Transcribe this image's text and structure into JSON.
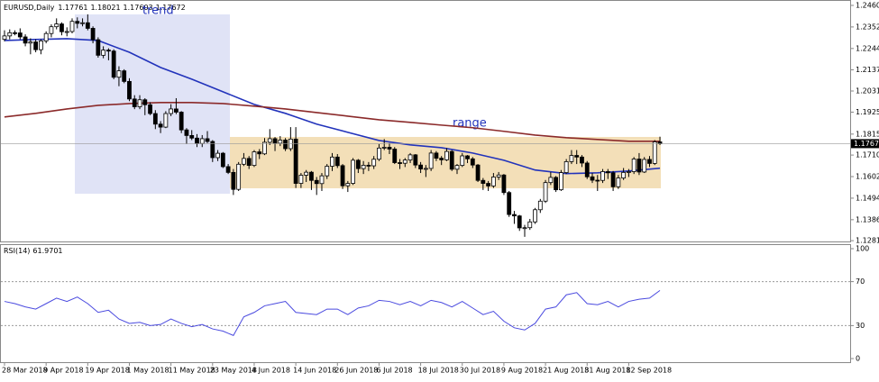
{
  "chart_data": [
    {
      "type": "candlestick",
      "title": "EURUSD,Daily",
      "annotations": [
        "trend",
        "range"
      ],
      "ylim": [
        1.1268,
        1.2487
      ],
      "yticks": [
        {
          "value": 1.246,
          "label": "1.24600"
        },
        {
          "value": 1.2352,
          "label": "1.23520"
        },
        {
          "value": 1.2244,
          "label": "1.22440"
        },
        {
          "value": 1.2137,
          "label": "1.21370"
        },
        {
          "value": 1.2031,
          "label": "1.20310"
        },
        {
          "value": 1.1925,
          "label": "1.19250"
        },
        {
          "value": 1.1815,
          "label": "1.18150"
        },
        {
          "value": 1.171,
          "label": "1.17100"
        },
        {
          "value": 1.1602,
          "label": "1.16020"
        },
        {
          "value": 1.1494,
          "label": "1.14940"
        },
        {
          "value": 1.1386,
          "label": "1.13860"
        },
        {
          "value": 1.1281,
          "label": "1.12810"
        }
      ],
      "bull_color": "#ffffff",
      "bear_color": "#000000",
      "categories": [
        "28 Mar 2018",
        null,
        null,
        null,
        null,
        null,
        null,
        null,
        "9 Apr 2018",
        null,
        null,
        null,
        null,
        null,
        null,
        null,
        "19 Apr 2018",
        null,
        null,
        null,
        null,
        null,
        null,
        null,
        "1 May 2018",
        null,
        null,
        null,
        null,
        null,
        null,
        null,
        "11 May 2018",
        null,
        null,
        null,
        null,
        null,
        null,
        null,
        "23 May 2018",
        null,
        null,
        null,
        null,
        null,
        null,
        null,
        "4 Jun 2018",
        null,
        null,
        null,
        null,
        null,
        null,
        null,
        "14 Jun 2018",
        null,
        null,
        null,
        null,
        null,
        null,
        null,
        "26 Jun 2018",
        null,
        null,
        null,
        null,
        null,
        null,
        null,
        "6 Jul 2018",
        null,
        null,
        null,
        null,
        null,
        null,
        null,
        "18 Jul 2018",
        null,
        null,
        null,
        null,
        null,
        null,
        null,
        "30 Jul 2018",
        null,
        null,
        null,
        null,
        null,
        null,
        null,
        "9 Aug 2018",
        null,
        null,
        null,
        null,
        null,
        null,
        null,
        "21 Aug 2018",
        null,
        null,
        null,
        null,
        null,
        null,
        null,
        "31 Aug 2018",
        null,
        null,
        null,
        null,
        null,
        null,
        null,
        "12 Sep 2018",
        null,
        null,
        null,
        null,
        null,
        null
      ],
      "candles": [
        [
          1.229,
          1.2335,
          1.228,
          1.2307
        ],
        [
          1.2307,
          1.234,
          1.229,
          1.2323
        ],
        [
          1.2323,
          1.2335,
          1.231,
          1.2322
        ],
        [
          1.2322,
          1.2345,
          1.229,
          1.2302
        ],
        [
          1.2302,
          1.2315,
          1.2255,
          1.2271
        ],
        [
          1.2271,
          1.2295,
          1.2215,
          1.2277
        ],
        [
          1.2277,
          1.229,
          1.2225,
          1.2238
        ],
        [
          1.2238,
          1.229,
          1.2215,
          1.2282
        ],
        [
          1.2282,
          1.233,
          1.227,
          1.2319
        ],
        [
          1.2319,
          1.2365,
          1.23,
          1.2353
        ],
        [
          1.2353,
          1.2395,
          1.234,
          1.2367
        ],
        [
          1.2367,
          1.2375,
          1.231,
          1.2328
        ],
        [
          1.2328,
          1.235,
          1.2305,
          1.2329
        ],
        [
          1.2329,
          1.2395,
          1.232,
          1.238
        ],
        [
          1.238,
          1.24,
          1.2345,
          1.237
        ],
        [
          1.237,
          1.2395,
          1.2355,
          1.2373
        ],
        [
          1.2373,
          1.2415,
          1.2335,
          1.2345
        ],
        [
          1.2345,
          1.2355,
          1.227,
          1.2288
        ],
        [
          1.2288,
          1.23,
          1.2198,
          1.221
        ],
        [
          1.221,
          1.2255,
          1.2195,
          1.2236
        ],
        [
          1.2236,
          1.2245,
          1.2185,
          1.2231
        ],
        [
          1.2231,
          1.224,
          1.209,
          1.21
        ],
        [
          1.21,
          1.2155,
          1.2055,
          1.2132
        ],
        [
          1.2132,
          1.214,
          1.207,
          1.2079
        ],
        [
          1.2079,
          1.2095,
          1.198,
          1.1991
        ],
        [
          1.1991,
          1.201,
          1.194,
          1.1952
        ],
        [
          1.1952,
          1.201,
          1.194,
          1.1987
        ],
        [
          1.1987,
          1.1995,
          1.191,
          1.1962
        ],
        [
          1.1962,
          1.1975,
          1.191,
          1.1918
        ],
        [
          1.1918,
          1.1935,
          1.184,
          1.1865
        ],
        [
          1.1865,
          1.188,
          1.182,
          1.185
        ],
        [
          1.185,
          1.193,
          1.1845,
          1.1918
        ],
        [
          1.1918,
          1.1965,
          1.1905,
          1.1941
        ],
        [
          1.1941,
          1.1995,
          1.1915,
          1.1925
        ],
        [
          1.1925,
          1.193,
          1.182,
          1.1836
        ],
        [
          1.1836,
          1.1845,
          1.1765,
          1.1808
        ],
        [
          1.1808,
          1.1835,
          1.1785,
          1.1795
        ],
        [
          1.1795,
          1.1815,
          1.175,
          1.1768
        ],
        [
          1.1768,
          1.181,
          1.175,
          1.1792
        ],
        [
          1.1792,
          1.183,
          1.177,
          1.1778
        ],
        [
          1.1778,
          1.1785,
          1.1675,
          1.1697
        ],
        [
          1.1697,
          1.1735,
          1.168,
          1.1719
        ],
        [
          1.1719,
          1.1725,
          1.1645,
          1.1652
        ],
        [
          1.1652,
          1.1665,
          1.1615,
          1.1623
        ],
        [
          1.1623,
          1.164,
          1.151,
          1.1538
        ],
        [
          1.1538,
          1.1675,
          1.153,
          1.1664
        ],
        [
          1.1664,
          1.172,
          1.1655,
          1.1693
        ],
        [
          1.1693,
          1.1705,
          1.164,
          1.1658
        ],
        [
          1.1658,
          1.1735,
          1.165,
          1.1726
        ],
        [
          1.1726,
          1.174,
          1.169,
          1.1716
        ],
        [
          1.1716,
          1.1795,
          1.171,
          1.1774
        ],
        [
          1.1774,
          1.184,
          1.176,
          1.1792
        ],
        [
          1.1792,
          1.18,
          1.173,
          1.1769
        ],
        [
          1.1769,
          1.1805,
          1.1755,
          1.1785
        ],
        [
          1.1785,
          1.1795,
          1.173,
          1.1742
        ],
        [
          1.1742,
          1.185,
          1.173,
          1.179
        ],
        [
          1.179,
          1.185,
          1.1545,
          1.1568
        ],
        [
          1.1568,
          1.162,
          1.1545,
          1.1609
        ],
        [
          1.1609,
          1.1635,
          1.1575,
          1.1624
        ],
        [
          1.1624,
          1.163,
          1.1535,
          1.1583
        ],
        [
          1.1583,
          1.16,
          1.151,
          1.1567
        ],
        [
          1.1567,
          1.162,
          1.153,
          1.1606
        ],
        [
          1.1606,
          1.1665,
          1.159,
          1.1654
        ],
        [
          1.1654,
          1.172,
          1.163,
          1.17
        ],
        [
          1.17,
          1.1715,
          1.1645,
          1.1657
        ],
        [
          1.1657,
          1.1665,
          1.154,
          1.1556
        ],
        [
          1.1556,
          1.158,
          1.1525,
          1.1568
        ],
        [
          1.1568,
          1.1695,
          1.156,
          1.1684
        ],
        [
          1.1684,
          1.169,
          1.162,
          1.1642
        ],
        [
          1.1642,
          1.168,
          1.1615,
          1.1659
        ],
        [
          1.1659,
          1.1675,
          1.163,
          1.1656
        ],
        [
          1.1656,
          1.1705,
          1.164,
          1.1689
        ],
        [
          1.1689,
          1.1765,
          1.168,
          1.1745
        ],
        [
          1.1745,
          1.179,
          1.1735,
          1.1749
        ],
        [
          1.1749,
          1.177,
          1.1715,
          1.174
        ],
        [
          1.174,
          1.175,
          1.1665,
          1.1672
        ],
        [
          1.1672,
          1.169,
          1.164,
          1.1669
        ],
        [
          1.1669,
          1.1695,
          1.165,
          1.1685
        ],
        [
          1.1685,
          1.172,
          1.167,
          1.1711
        ],
        [
          1.1711,
          1.1715,
          1.1645,
          1.166
        ],
        [
          1.166,
          1.1675,
          1.162,
          1.164
        ],
        [
          1.164,
          1.166,
          1.16,
          1.1643
        ],
        [
          1.1643,
          1.1735,
          1.163,
          1.172
        ],
        [
          1.172,
          1.173,
          1.168,
          1.1694
        ],
        [
          1.1694,
          1.1705,
          1.166,
          1.1686
        ],
        [
          1.1686,
          1.1745,
          1.168,
          1.1728
        ],
        [
          1.1728,
          1.1735,
          1.163,
          1.1639
        ],
        [
          1.1639,
          1.1665,
          1.1615,
          1.1658
        ],
        [
          1.1658,
          1.172,
          1.165,
          1.1706
        ],
        [
          1.1706,
          1.171,
          1.167,
          1.1691
        ],
        [
          1.1691,
          1.17,
          1.1645,
          1.166
        ],
        [
          1.166,
          1.1665,
          1.1575,
          1.1583
        ],
        [
          1.1583,
          1.1595,
          1.1535,
          1.1568
        ],
        [
          1.1568,
          1.158,
          1.153,
          1.1555
        ],
        [
          1.1555,
          1.162,
          1.1545,
          1.16
        ],
        [
          1.16,
          1.1625,
          1.1585,
          1.161
        ],
        [
          1.161,
          1.1615,
          1.151,
          1.1522
        ],
        [
          1.1522,
          1.153,
          1.14,
          1.1412
        ],
        [
          1.1412,
          1.143,
          1.1365,
          1.1405
        ],
        [
          1.1405,
          1.141,
          1.133,
          1.1345
        ],
        [
          1.1345,
          1.136,
          1.13,
          1.1346
        ],
        [
          1.1346,
          1.139,
          1.1335,
          1.1375
        ],
        [
          1.1375,
          1.1445,
          1.1365,
          1.1436
        ],
        [
          1.1436,
          1.149,
          1.142,
          1.1479
        ],
        [
          1.1479,
          1.1585,
          1.147,
          1.1572
        ],
        [
          1.1572,
          1.1625,
          1.156,
          1.1598
        ],
        [
          1.1598,
          1.1605,
          1.1525,
          1.1536
        ],
        [
          1.1536,
          1.1635,
          1.153,
          1.1622
        ],
        [
          1.1622,
          1.169,
          1.1615,
          1.1677
        ],
        [
          1.1677,
          1.1735,
          1.1665,
          1.1708
        ],
        [
          1.1708,
          1.1735,
          1.1665,
          1.17
        ],
        [
          1.17,
          1.171,
          1.165,
          1.167
        ],
        [
          1.167,
          1.168,
          1.159,
          1.1601
        ],
        [
          1.1601,
          1.162,
          1.157,
          1.1584
        ],
        [
          1.1584,
          1.161,
          1.153,
          1.1583
        ],
        [
          1.1583,
          1.164,
          1.157,
          1.1627
        ],
        [
          1.1627,
          1.164,
          1.159,
          1.1621
        ],
        [
          1.1621,
          1.163,
          1.153,
          1.1551
        ],
        [
          1.1551,
          1.161,
          1.154,
          1.1595
        ],
        [
          1.1595,
          1.1645,
          1.1585,
          1.1623
        ],
        [
          1.1623,
          1.164,
          1.16,
          1.1627
        ],
        [
          1.1627,
          1.17,
          1.1615,
          1.169
        ],
        [
          1.169,
          1.172,
          1.161,
          1.1625
        ],
        [
          1.1625,
          1.17,
          1.162,
          1.1688
        ],
        [
          1.1688,
          1.1705,
          1.165,
          1.1668
        ],
        [
          1.1668,
          1.1785,
          1.166,
          1.1776
        ],
        [
          1.17761,
          1.18021,
          1.17603,
          1.17672
        ]
      ],
      "series": [
        {
          "color": "#2233bb",
          "x": [
            0,
            6,
            12,
            18,
            24,
            30,
            36,
            42,
            48,
            54,
            60,
            66,
            72,
            78,
            84,
            90,
            96,
            102,
            108,
            114,
            120,
            126
          ],
          "values": [
            1.2284,
            1.2289,
            1.2293,
            1.2284,
            1.2225,
            1.2149,
            1.209,
            1.2027,
            1.1964,
            1.1919,
            1.1865,
            1.1824,
            1.1783,
            1.1761,
            1.1747,
            1.172,
            1.1684,
            1.1635,
            1.1617,
            1.1621,
            1.163,
            1.1644
          ]
        },
        {
          "color": "#8b2a2a",
          "x": [
            0,
            6,
            12,
            18,
            24,
            30,
            36,
            42,
            48,
            54,
            60,
            66,
            72,
            78,
            84,
            90,
            96,
            102,
            108,
            114,
            120,
            126
          ],
          "values": [
            1.1901,
            1.1919,
            1.1941,
            1.1959,
            1.1968,
            1.1973,
            1.1973,
            1.1968,
            1.1955,
            1.1941,
            1.1923,
            1.1905,
            1.1887,
            1.1874,
            1.186,
            1.1847,
            1.1829,
            1.181,
            1.1797,
            1.1788,
            1.1779,
            1.1779
          ]
        }
      ]
    },
    {
      "type": "line",
      "title": "RSI(14)",
      "ylim": [
        0,
        100
      ],
      "yticks": [
        0,
        30,
        70,
        100
      ],
      "series": [
        {
          "color": "#4a4adf",
          "x": [
            0,
            2,
            4,
            6,
            8,
            10,
            12,
            14,
            16,
            18,
            20,
            22,
            24,
            26,
            28,
            30,
            32,
            34,
            36,
            38,
            40,
            42,
            44,
            46,
            48,
            50,
            52,
            54,
            56,
            58,
            60,
            62,
            64,
            66,
            68,
            70,
            72,
            74,
            76,
            78,
            80,
            82,
            84,
            86,
            88,
            90,
            92,
            94,
            96,
            98,
            100,
            102,
            104,
            106,
            108,
            110,
            112,
            114,
            116,
            118,
            120,
            122,
            124,
            126
          ],
          "values": [
            52,
            50,
            47,
            45,
            50,
            55,
            52,
            56,
            50,
            42,
            44,
            36,
            32,
            33,
            30,
            31,
            36,
            32,
            29,
            31,
            27,
            25,
            21,
            38,
            42,
            48,
            50,
            52,
            42,
            41,
            40,
            45,
            45,
            40,
            46,
            48,
            53,
            52,
            49,
            52,
            48,
            53,
            51,
            47,
            52,
            46,
            40,
            43,
            34,
            28,
            26,
            32,
            45,
            47,
            58,
            60,
            50,
            49,
            52,
            47,
            52,
            54,
            55,
            61.9701
          ]
        }
      ]
    }
  ]
}
